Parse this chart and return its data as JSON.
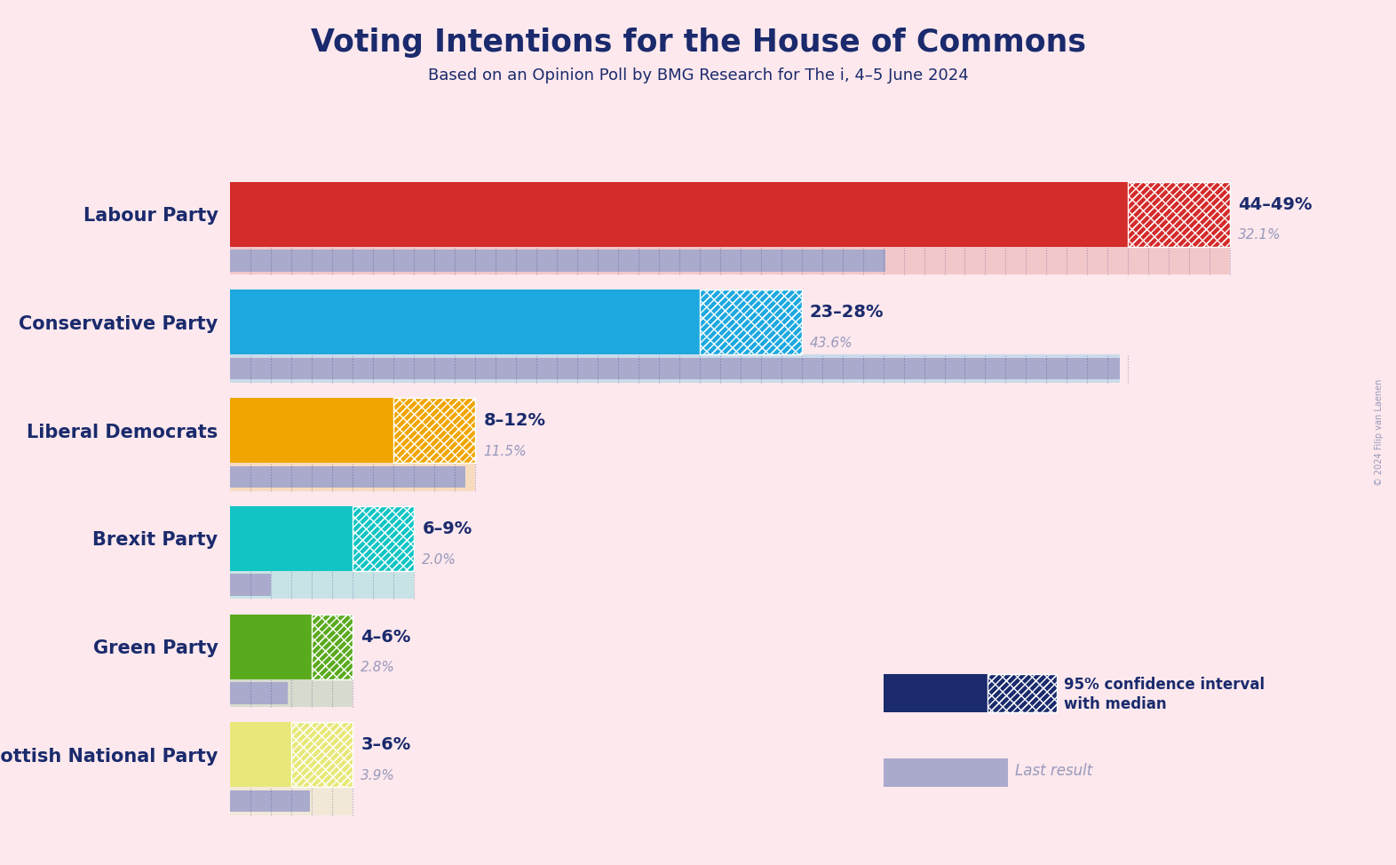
{
  "title": "Voting Intentions for the House of Commons",
  "subtitle": "Based on an Opinion Poll by BMG Research for The i, 4–5 June 2024",
  "background_color": "#fce8ed",
  "title_color": "#1a2a6c",
  "subtitle_color": "#1a2a6c",
  "copyright_text": "© 2024 Filip van Laenen",
  "parties": [
    {
      "name": "Labour Party",
      "ci_low": 44,
      "ci_high": 49,
      "last_result": 32.1,
      "color": "#d42b2b",
      "color_light": "#e8a0a0",
      "label": "44–49%",
      "sublabel": "32.1%"
    },
    {
      "name": "Conservative Party",
      "ci_low": 23,
      "ci_high": 28,
      "last_result": 43.6,
      "color": "#1da8e0",
      "color_light": "#90cce8",
      "label": "23–28%",
      "sublabel": "43.6%"
    },
    {
      "name": "Liberal Democrats",
      "ci_low": 8,
      "ci_high": 12,
      "last_result": 11.5,
      "color": "#f0a500",
      "color_light": "#f0cc88",
      "label": "8–12%",
      "sublabel": "11.5%"
    },
    {
      "name": "Brexit Party",
      "ci_low": 6,
      "ci_high": 9,
      "last_result": 2.0,
      "color": "#12c4c4",
      "color_light": "#88dede",
      "label": "6–9%",
      "sublabel": "2.0%"
    },
    {
      "name": "Green Party",
      "ci_low": 4,
      "ci_high": 6,
      "last_result": 2.8,
      "color": "#5aaa1e",
      "color_light": "#aaccaa",
      "label": "4–6%",
      "sublabel": "2.8%"
    },
    {
      "name": "Scottish National Party",
      "ci_low": 3,
      "ci_high": 6,
      "last_result": 3.9,
      "color": "#e8e87a",
      "color_light": "#e8e8c0",
      "label": "3–6%",
      "sublabel": "3.9%"
    }
  ],
  "xmax": 52,
  "label_color": "#1a2a6c",
  "sublabel_color": "#9999bb",
  "last_result_color": "#aaaacc",
  "legend_ci_color": "#1a2a6c"
}
